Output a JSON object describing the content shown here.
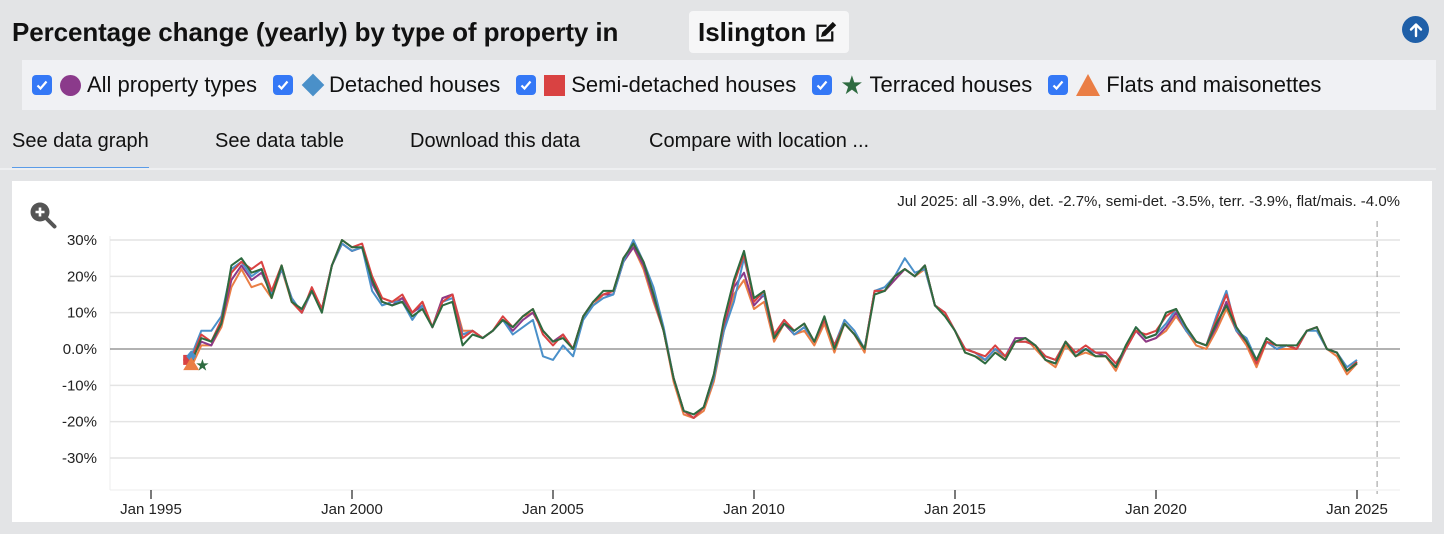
{
  "header": {
    "title": "Percentage change (yearly) by type of property in",
    "location": "Islington",
    "edit_icon": "pencil-square-icon",
    "scroll_top_icon": "arrow-up-circle-icon"
  },
  "legend": [
    {
      "label": "All property types",
      "checked": true,
      "symbol": "circle",
      "color": "#8b3a8b"
    },
    {
      "label": "Detached houses",
      "checked": true,
      "symbol": "diamond",
      "color": "#4a90c9"
    },
    {
      "label": "Semi-detached houses",
      "checked": true,
      "symbol": "square",
      "color": "#d94242"
    },
    {
      "label": "Terraced houses",
      "checked": true,
      "symbol": "star",
      "color": "#2e6b40"
    },
    {
      "label": "Flats and maisonettes",
      "checked": true,
      "symbol": "triangle",
      "color": "#ea7e45"
    }
  ],
  "tabs": [
    {
      "label": "See data graph",
      "active": true
    },
    {
      "label": "See data table",
      "active": false
    },
    {
      "label": "Download this data",
      "active": false
    },
    {
      "label": "Compare with location ...",
      "active": false
    }
  ],
  "chart_data": {
    "type": "line",
    "title": "Percentage change (yearly) by type of property in Islington",
    "readout": "Jul 2025: all -3.9%, det. -2.7%, semi-det. -3.5%, terr. -3.9%, flat/mais. -4.0%",
    "ylabel": "",
    "xlabel": "",
    "ylim": [
      -35,
      33
    ],
    "yticks": [
      30,
      20,
      10,
      0,
      -10,
      -20,
      -30
    ],
    "ytick_labels": [
      "30%",
      "20%",
      "10%",
      "0.0%",
      "-10%",
      "-20%",
      "-30%"
    ],
    "xlim": [
      1994.0,
      2026.1
    ],
    "xticks": [
      1995,
      2000,
      2005,
      2010,
      2015,
      2020,
      2025
    ],
    "xtick_labels": [
      "Jan 1995",
      "Jan 2000",
      "Jan 2005",
      "Jan 2010",
      "Jan 2015",
      "Jan 2020",
      "Jan 2025"
    ],
    "cursor_x": 2025.5,
    "grid": true,
    "legend_position": "top",
    "x": [
      1996.0,
      1996.25,
      1996.5,
      1996.75,
      1997.0,
      1997.25,
      1997.5,
      1997.75,
      1998.0,
      1998.25,
      1998.5,
      1998.75,
      1999.0,
      1999.25,
      1999.5,
      1999.75,
      2000.0,
      2000.25,
      2000.5,
      2000.75,
      2001.0,
      2001.25,
      2001.5,
      2001.75,
      2002.0,
      2002.25,
      2002.5,
      2002.75,
      2003.0,
      2003.25,
      2003.5,
      2003.75,
      2004.0,
      2004.25,
      2004.5,
      2004.75,
      2005.0,
      2005.25,
      2005.5,
      2005.75,
      2006.0,
      2006.25,
      2006.5,
      2006.75,
      2007.0,
      2007.25,
      2007.5,
      2007.75,
      2008.0,
      2008.25,
      2008.5,
      2008.75,
      2009.0,
      2009.25,
      2009.5,
      2009.75,
      2010.0,
      2010.25,
      2010.5,
      2010.75,
      2011.0,
      2011.25,
      2011.5,
      2011.75,
      2012.0,
      2012.25,
      2012.5,
      2012.75,
      2013.0,
      2013.25,
      2013.5,
      2013.75,
      2014.0,
      2014.25,
      2014.5,
      2014.75,
      2015.0,
      2015.25,
      2015.5,
      2015.75,
      2016.0,
      2016.25,
      2016.5,
      2016.75,
      2017.0,
      2017.25,
      2017.5,
      2017.75,
      2018.0,
      2018.25,
      2018.5,
      2018.75,
      2019.0,
      2019.25,
      2019.5,
      2019.75,
      2020.0,
      2020.25,
      2020.5,
      2020.75,
      2021.0,
      2021.25,
      2021.5,
      2021.75,
      2022.0,
      2022.25,
      2022.5,
      2022.75,
      2023.0,
      2023.25,
      2023.5,
      2023.75,
      2024.0,
      2024.25,
      2024.5,
      2024.75,
      2025.0,
      2025.25,
      2025.5
    ],
    "series": [
      {
        "name": "All property types",
        "color": "#8b3a8b",
        "values": [
          -3,
          2,
          1,
          7,
          19,
          23,
          19,
          21,
          15,
          22,
          14,
          10,
          16,
          11,
          23,
          29,
          27,
          28,
          18,
          13,
          12,
          14,
          10,
          12,
          6,
          14,
          15,
          4,
          5,
          3,
          5,
          8,
          5,
          8,
          10,
          5,
          2,
          4,
          0,
          9,
          13,
          15,
          15,
          24,
          28,
          23,
          14,
          5,
          -8,
          -17,
          -19,
          -16,
          -8,
          6,
          17,
          21,
          12,
          15,
          3,
          7,
          4,
          6,
          2,
          8,
          1,
          7,
          4,
          0,
          16,
          16,
          19,
          22,
          20,
          23,
          12,
          10,
          5,
          0,
          -1,
          -3,
          0,
          -2,
          3,
          3,
          1,
          -3,
          -4,
          2,
          -2,
          0,
          -1,
          -2,
          -5,
          0,
          5,
          2,
          3,
          6,
          10,
          5,
          2,
          1,
          6,
          13,
          5,
          2,
          -4,
          2,
          0,
          1,
          0,
          5,
          6,
          0,
          -1,
          -6,
          -4
        ],
        "last_value": -3.9
      },
      {
        "name": "Detached houses",
        "color": "#4a90c9",
        "values": [
          -2,
          5,
          5,
          9,
          22,
          24,
          20,
          22,
          15,
          22,
          14,
          10,
          16,
          11,
          23,
          29,
          27,
          28,
          16,
          12,
          13,
          13,
          8,
          12,
          6,
          13,
          14,
          4,
          5,
          3,
          5,
          8,
          4,
          6,
          8,
          -2,
          -3,
          1,
          -2,
          8,
          12,
          14,
          15,
          24,
          30,
          24,
          17,
          6,
          -8,
          -17,
          -19,
          -16,
          -8,
          5,
          13,
          25,
          14,
          15,
          4,
          8,
          4,
          6,
          2,
          8,
          1,
          8,
          5,
          0,
          16,
          17,
          20,
          25,
          21,
          22,
          12,
          10,
          5,
          0,
          -1,
          -3,
          0,
          -2,
          2,
          2,
          1,
          -2,
          -3,
          2,
          -1,
          0,
          -1,
          -1,
          -4,
          0,
          6,
          3,
          4,
          7,
          11,
          5,
          2,
          1,
          9,
          16,
          5,
          3,
          -3,
          2,
          0,
          1,
          0,
          5,
          5,
          0,
          -1,
          -5,
          -3
        ],
        "last_value": -2.7
      },
      {
        "name": "Semi-detached houses",
        "color": "#d94242",
        "values": [
          -3,
          4,
          2,
          8,
          21,
          24,
          22,
          24,
          16,
          23,
          13,
          10,
          17,
          11,
          23,
          30,
          28,
          29,
          20,
          14,
          13,
          15,
          10,
          13,
          6,
          13,
          15,
          3,
          5,
          3,
          5,
          9,
          6,
          9,
          11,
          4,
          1,
          4,
          0,
          9,
          13,
          15,
          16,
          25,
          29,
          24,
          15,
          5,
          -8,
          -17,
          -19,
          -16,
          -7,
          7,
          18,
          26,
          13,
          16,
          4,
          8,
          5,
          7,
          2,
          8,
          1,
          7,
          4,
          0,
          16,
          16,
          20,
          22,
          20,
          23,
          12,
          10,
          5,
          0,
          -1,
          -2,
          1,
          -2,
          2,
          2,
          1,
          -2,
          -3,
          2,
          -1,
          1,
          -1,
          -1,
          -4,
          0,
          5,
          4,
          5,
          9,
          11,
          6,
          2,
          1,
          8,
          15,
          6,
          2,
          -4,
          2,
          1,
          1,
          0,
          5,
          6,
          0,
          -1,
          -6,
          -3.5
        ],
        "last_value": -3.5
      },
      {
        "name": "Terraced houses",
        "color": "#2e6b40",
        "values": [
          -4,
          3,
          2,
          7,
          23,
          25,
          21,
          22,
          14,
          23,
          13,
          11,
          16,
          10,
          23,
          30,
          28,
          28,
          19,
          13,
          12,
          13,
          9,
          11,
          6,
          12,
          13,
          1,
          4,
          3,
          5,
          8,
          6,
          9,
          11,
          5,
          2,
          3,
          0,
          9,
          13,
          16,
          16,
          25,
          29,
          24,
          15,
          5,
          -8,
          -17,
          -18,
          -16,
          -7,
          8,
          19,
          27,
          14,
          16,
          3,
          7,
          5,
          7,
          2,
          9,
          0,
          7,
          4,
          0,
          15,
          16,
          20,
          22,
          20,
          23,
          12,
          9,
          5,
          -1,
          -2,
          -4,
          -1,
          -3,
          2,
          3,
          1,
          -3,
          -4,
          2,
          -2,
          0,
          -2,
          -2,
          -5,
          1,
          6,
          3,
          4,
          10,
          11,
          6,
          2,
          1,
          7,
          12,
          6,
          2,
          -3,
          3,
          1,
          1,
          1,
          5,
          6,
          0,
          -1,
          -6,
          -3.9
        ],
        "last_value": -3.9
      },
      {
        "name": "Flats and maisonettes",
        "color": "#ea7e45",
        "values": [
          -5,
          1,
          1,
          6,
          17,
          22,
          17,
          18,
          14,
          22,
          13,
          10,
          16,
          11,
          23,
          29,
          27,
          28,
          20,
          14,
          13,
          14,
          10,
          13,
          6,
          14,
          15,
          5,
          5,
          3,
          5,
          8,
          6,
          9,
          10,
          5,
          2,
          4,
          0,
          9,
          12,
          15,
          15,
          24,
          28,
          22,
          13,
          5,
          -9,
          -18,
          -19,
          -17,
          -9,
          5,
          15,
          19,
          11,
          13,
          2,
          7,
          4,
          5,
          1,
          7,
          -1,
          7,
          4,
          -1,
          16,
          16,
          19,
          22,
          20,
          22,
          12,
          10,
          5,
          -1,
          -2,
          -3,
          0,
          -3,
          2,
          3,
          0,
          -3,
          -5,
          1,
          -2,
          -1,
          -2,
          -2,
          -6,
          0,
          5,
          2,
          3,
          5,
          9,
          5,
          1,
          0,
          5,
          11,
          5,
          1,
          -5,
          2,
          0,
          0,
          0,
          5,
          6,
          0,
          -2,
          -7,
          -4
        ],
        "last_value": -4.0
      }
    ]
  },
  "zoom_icon": "zoom-in-icon"
}
